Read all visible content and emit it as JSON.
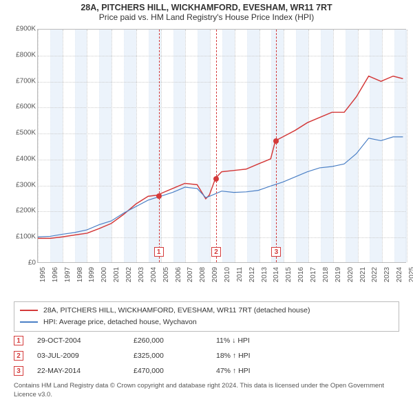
{
  "title": "28A, PITCHERS HILL, WICKHAMFORD, EVESHAM, WR11 7RT",
  "subtitle": "Price paid vs. HM Land Registry's House Price Index (HPI)",
  "chart": {
    "type": "line",
    "background_color": "#ffffff",
    "grid_color": "#cccccc",
    "border_color": "#bbbbbb",
    "band_color": "#eaf2fb",
    "event_line_color": "#d43a3a",
    "ylim": [
      0,
      900000
    ],
    "ytick_step": 100000,
    "y_ticks": [
      "£0",
      "£100K",
      "£200K",
      "£300K",
      "£400K",
      "£500K",
      "£600K",
      "£700K",
      "£800K",
      "£900K"
    ],
    "x_years": [
      1995,
      1996,
      1997,
      1998,
      1999,
      2000,
      2001,
      2002,
      2003,
      2004,
      2005,
      2006,
      2007,
      2008,
      2009,
      2010,
      2011,
      2012,
      2013,
      2014,
      2015,
      2016,
      2017,
      2018,
      2019,
      2020,
      2021,
      2022,
      2023,
      2024,
      2025
    ],
    "alt_band_start_index": 1,
    "label_fontsize": 10,
    "title_fontsize": 12.5,
    "series": [
      {
        "name": "28A, PITCHERS HILL, WICKHAMFORD, EVESHAM, WR11 7RT (detached house)",
        "color": "#d43a3a",
        "width": 1.5,
        "values_by_year": {
          "1995": 92000,
          "1996": 92000,
          "1997": 98000,
          "1998": 105000,
          "1999": 112000,
          "2000": 130000,
          "2001": 150000,
          "2002": 185000,
          "2003": 225000,
          "2004": 255000,
          "2004.83": 260000,
          "2005": 265000,
          "2006": 285000,
          "2007": 305000,
          "2008": 300000,
          "2008.7": 245000,
          "2009": 260000,
          "2009.5": 325000,
          "2010": 350000,
          "2011": 355000,
          "2012": 360000,
          "2013": 380000,
          "2014": 400000,
          "2014.39": 470000,
          "2015": 485000,
          "2016": 510000,
          "2017": 540000,
          "2018": 560000,
          "2019": 580000,
          "2020": 580000,
          "2021": 640000,
          "2022": 720000,
          "2023": 700000,
          "2024": 720000,
          "2024.8": 710000
        }
      },
      {
        "name": "HPI: Average price, detached house, Wychavon",
        "color": "#4a7fc5",
        "width": 1.2,
        "values_by_year": {
          "1995": 98000,
          "1996": 100000,
          "1997": 108000,
          "1998": 115000,
          "1999": 125000,
          "2000": 145000,
          "2001": 160000,
          "2002": 190000,
          "2003": 215000,
          "2004": 240000,
          "2005": 255000,
          "2006": 270000,
          "2007": 290000,
          "2008": 285000,
          "2008.7": 250000,
          "2009": 255000,
          "2010": 275000,
          "2011": 270000,
          "2012": 272000,
          "2013": 278000,
          "2014": 295000,
          "2015": 310000,
          "2016": 330000,
          "2017": 350000,
          "2018": 365000,
          "2019": 370000,
          "2020": 380000,
          "2021": 420000,
          "2022": 480000,
          "2023": 470000,
          "2024": 485000,
          "2024.8": 485000
        }
      }
    ],
    "sales": [
      {
        "n": "1",
        "year": 2004.83,
        "value": 260000,
        "date": "29-OCT-2004",
        "price": "£260,000",
        "delta": "11% ↓ HPI"
      },
      {
        "n": "2",
        "year": 2009.5,
        "value": 325000,
        "date": "03-JUL-2009",
        "price": "£325,000",
        "delta": "18% ↑ HPI"
      },
      {
        "n": "3",
        "year": 2014.39,
        "value": 470000,
        "date": "22-MAY-2014",
        "price": "£470,000",
        "delta": "47% ↑ HPI"
      }
    ]
  },
  "legend": {
    "header": null
  },
  "footer": "Contains HM Land Registry data © Crown copyright and database right 2024. This data is licensed under the Open Government Licence v3.0."
}
